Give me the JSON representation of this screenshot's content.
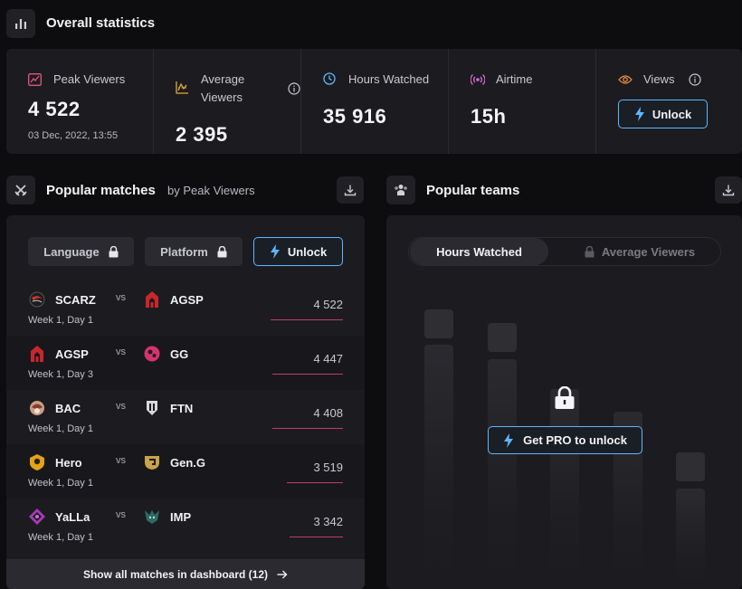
{
  "overall": {
    "title": "Overall statistics"
  },
  "stats": {
    "peak_viewers": {
      "label": "Peak Viewers",
      "value": "4 522",
      "date": "03 Dec, 2022, 13:55"
    },
    "average_viewers": {
      "label_line1": "Average",
      "label_line2": "Viewers",
      "value": "2 395"
    },
    "hours_watched": {
      "label": "Hours Watched",
      "value": "35 916"
    },
    "airtime": {
      "label": "Airtime",
      "value": "15h"
    },
    "views": {
      "label": "Views",
      "unlock_label": "Unlock"
    }
  },
  "popular_matches": {
    "title": "Popular matches",
    "subtitle": "by Peak Viewers",
    "filters": {
      "language": "Language",
      "platform": "Platform",
      "unlock": "Unlock"
    },
    "rows": [
      {
        "team1": "SCARZ",
        "team2": "AGSP",
        "vs": "vs",
        "stage": "Week 1, Day 1",
        "viewers": "4 522",
        "share": 1.0
      },
      {
        "team1": "AGSP",
        "team2": "GG",
        "vs": "vs",
        "stage": "Week 1, Day 3",
        "viewers": "4 447",
        "share": 0.98
      },
      {
        "team1": "BAC",
        "team2": "FTN",
        "vs": "vs",
        "stage": "Week 1, Day 1",
        "viewers": "4 408",
        "share": 0.97
      },
      {
        "team1": "Hero",
        "team2": "Gen.G",
        "vs": "vs",
        "stage": "Week 1, Day 1",
        "viewers": "3 519",
        "share": 0.78
      },
      {
        "team1": "YaLLa",
        "team2": "IMP",
        "vs": "vs",
        "stage": "Week 1, Day 1",
        "viewers": "3 342",
        "share": 0.74
      }
    ],
    "show_all": "Show all matches in dashboard (12)"
  },
  "popular_teams": {
    "title": "Popular teams",
    "toggle": {
      "hours_watched": "Hours Watched",
      "average_viewers": "Average Viewers"
    },
    "pro_button": "Get PRO to unlock"
  },
  "colors": {
    "accent_blue": "#5fb6ff",
    "bar_pink": "#c23a63"
  }
}
